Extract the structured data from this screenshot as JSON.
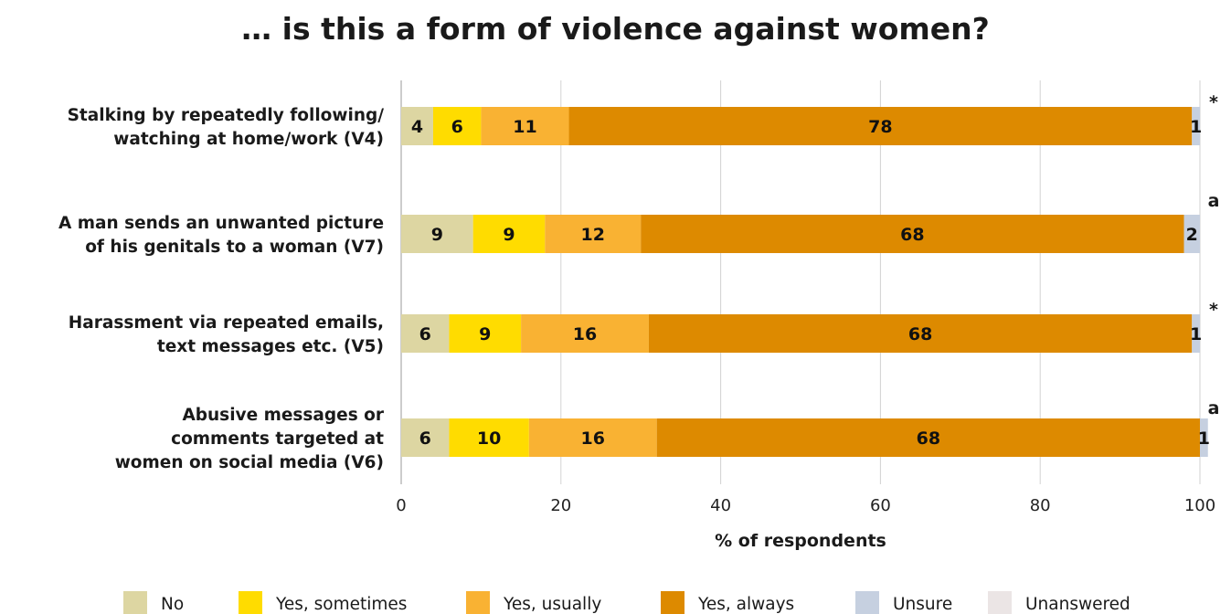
{
  "chart_data": {
    "type": "bar",
    "orientation": "horizontal",
    "stacked": true,
    "title": "… is this a form of violence against women?",
    "xlabel": "% of respondents",
    "xlim": [
      0,
      100
    ],
    "xticks": [
      0,
      20,
      40,
      60,
      80,
      100
    ],
    "grid": true,
    "legend_position": "bottom",
    "categories": [
      [
        "Stalking by repeatedly following/",
        "watching at home/work (V4)"
      ],
      [
        "A man sends an unwanted picture",
        "of his genitals to a woman (V7)"
      ],
      [
        "Harassment via repeated emails,",
        "text messages etc. (V5)"
      ],
      [
        "Abusive messages or",
        "comments targeted at",
        "women on social media (V6)"
      ]
    ],
    "notes": [
      "*",
      "a",
      "*",
      "a"
    ],
    "series": [
      {
        "name": "No",
        "color": "#ddd6a2",
        "values": [
          4,
          9,
          6,
          6
        ]
      },
      {
        "name": "Yes, sometimes",
        "color": "#ffdc00",
        "values": [
          6,
          9,
          9,
          10
        ]
      },
      {
        "name": "Yes, usually",
        "color": "#f9b233",
        "values": [
          11,
          12,
          16,
          16
        ]
      },
      {
        "name": "Yes, always",
        "color": "#dd8a00",
        "values": [
          78,
          68,
          68,
          68
        ]
      },
      {
        "name": "Unsure",
        "color": "#c6d0e0",
        "values": [
          1,
          2,
          1,
          1
        ]
      },
      {
        "name": "Unanswered",
        "color": "#ebe5e5",
        "values": [
          0,
          0,
          0,
          0
        ]
      }
    ]
  }
}
